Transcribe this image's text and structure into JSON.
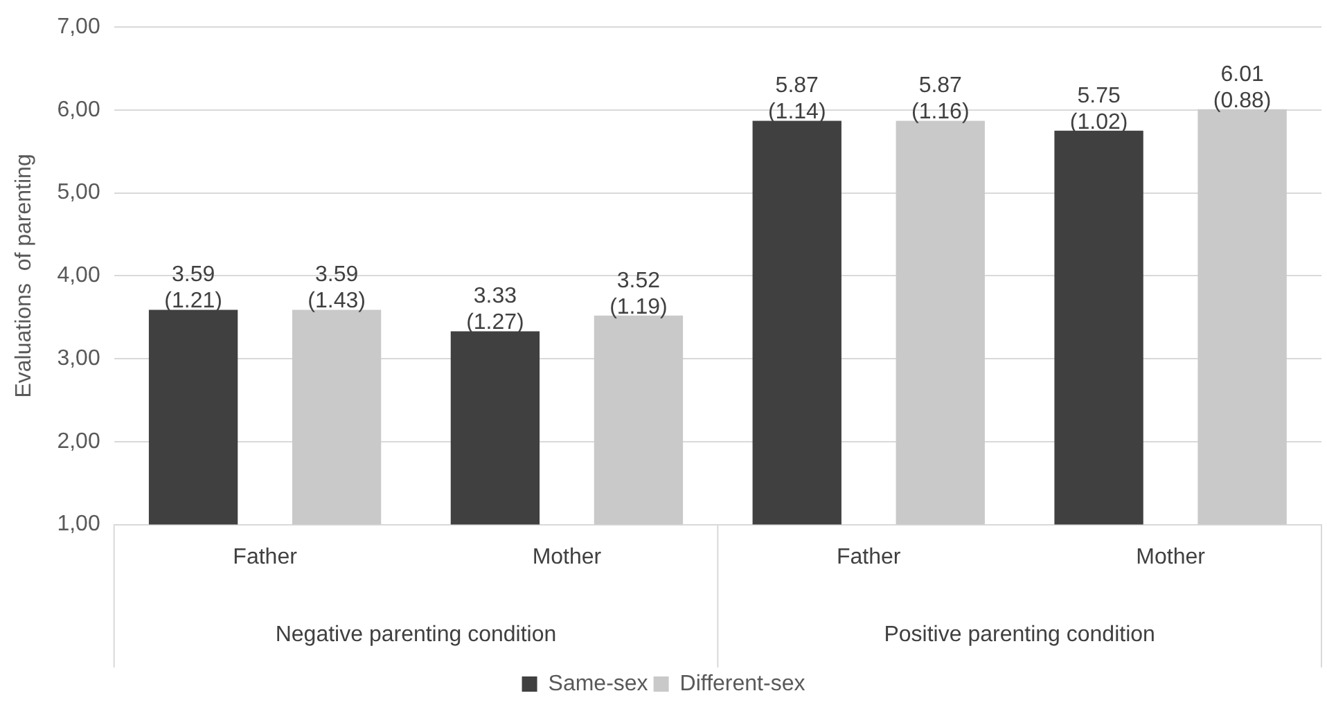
{
  "chart_data": {
    "type": "bar",
    "ylabel": "Evaluations  of parenting",
    "categories": [
      "Father",
      "Mother",
      "Father",
      "Mother"
    ],
    "series": [
      {
        "name": "Same-sex",
        "color": "#404040",
        "values": [
          3.59,
          3.33,
          5.87,
          5.75
        ],
        "value_labels": [
          "3.59 (1.21)",
          "3.33 (1.27)",
          "5.87 (1.14)",
          "5.75 (1.02)"
        ]
      },
      {
        "name": "Different-sex",
        "color": "#c9c9c9",
        "values": [
          3.59,
          3.52,
          5.87,
          6.01
        ],
        "value_labels": [
          "3.59 (1.43)",
          "3.52 (1.19)",
          "5.87 (1.16)",
          "6.01 (0.88)"
        ]
      }
    ],
    "ylim": [
      1,
      7
    ],
    "yticks": [
      {
        "value": 1,
        "label": "1,00"
      },
      {
        "value": 2,
        "label": "2,00"
      },
      {
        "value": 3,
        "label": "3,00"
      },
      {
        "value": 4,
        "label": "4,00"
      },
      {
        "value": 5,
        "label": "5,00"
      },
      {
        "value": 6,
        "label": "6,00"
      },
      {
        "value": 7,
        "label": "7,00"
      }
    ],
    "grid": "y",
    "legend": "bottom",
    "annotations": [
      "Negative parenting condition",
      "Positive parenting condition"
    ]
  }
}
